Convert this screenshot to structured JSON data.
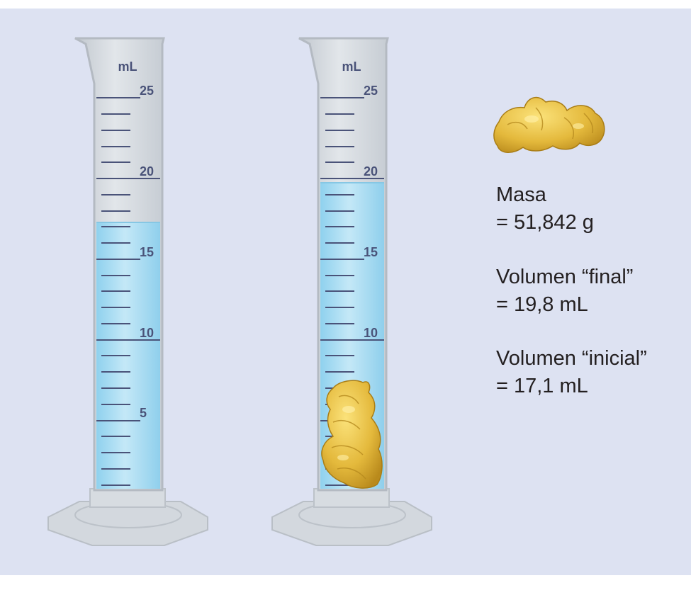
{
  "background_color": "#dde2f2",
  "colors": {
    "water": "#a9dbf0",
    "glass": "#d3d8de",
    "scale": "#4a5379",
    "gold": "#e0b53a"
  },
  "cylinder_unit": "mL",
  "scale_labels": [
    "25",
    "20",
    "15",
    "10",
    "5"
  ],
  "cylinders": [
    {
      "id": "left",
      "contents": "water",
      "water_level_ml": 17.1
    },
    {
      "id": "right",
      "contents": "water and gold nugget",
      "water_level_ml": 19.8
    }
  ],
  "info": {
    "mass_label": "Masa",
    "mass_value": "= 51,842 g",
    "final_label": "Volumen “final”",
    "final_value": "= 19,8 mL",
    "initial_label": "Volumen “inicial”",
    "initial_value": "= 17,1 mL"
  },
  "icons": [
    "gold-nugget-icon"
  ]
}
